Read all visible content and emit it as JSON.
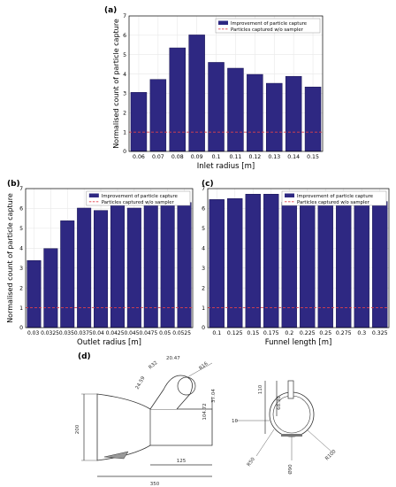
{
  "colors": {
    "bar": "#2e2882",
    "bar_edge": "#16124f",
    "ref_line": "#e0404a",
    "grid": "#e8e8e8"
  },
  "chart_data": [
    {
      "type": "bar",
      "panel": "(a)",
      "xlabel": "Inlet radius [m]",
      "ylabel": "Normalised count of particle capture",
      "categories": [
        "0.06",
        "0.07",
        "0.08",
        "0.09",
        "0.1",
        "0.11",
        "0.12",
        "0.13",
        "0.14",
        "0.15"
      ],
      "values": [
        3.05,
        3.72,
        5.35,
        6.02,
        4.6,
        4.3,
        3.98,
        3.52,
        3.88,
        3.33
      ],
      "reference_value": 1,
      "ylim": [
        0,
        7
      ],
      "yticks": [
        "0",
        "1",
        "2",
        "3",
        "4",
        "5",
        "6",
        "7"
      ],
      "grid": true,
      "legend_position": "top-right",
      "legend": [
        "Improvement of particle capture",
        "Particles captured w/o sampler"
      ]
    },
    {
      "type": "bar",
      "panel": "(b)",
      "xlabel": "Outlet radius [m]",
      "ylabel": "Normalised count of particle capture",
      "categories": [
        "0.03",
        "0.0325",
        "0.035",
        "0.0375",
        "0.04",
        "0.0425",
        "0.045",
        "0.0475",
        "0.05",
        "0.0525"
      ],
      "tick_text": "0.03 0.03250.0350.03750.04 0.04250.0450.0475 0.05 0.0525",
      "values": [
        3.38,
        3.98,
        5.38,
        6.02,
        5.9,
        6.42,
        6.02,
        6.52,
        6.75,
        6.3
      ],
      "reference_value": 1,
      "ylim": [
        0,
        7
      ],
      "yticks": [
        "0",
        "1",
        "2",
        "3",
        "4",
        "5",
        "6",
        "7"
      ],
      "grid": true,
      "legend_position": "top-right",
      "legend": [
        "Improvement of particle capture",
        "Particles captured w/o sampler"
      ]
    },
    {
      "type": "bar",
      "panel": "(c)",
      "xlabel": "Funnel length [m]",
      "ylabel": "",
      "categories": [
        "0.1",
        "0.125",
        "0.15",
        "0.175",
        "0.2",
        "0.225",
        "0.25",
        "0.275",
        "0.3",
        "0.325"
      ],
      "values": [
        6.45,
        6.5,
        6.72,
        6.72,
        6.32,
        6.85,
        6.42,
        6.42,
        6.18,
        6.35
      ],
      "reference_value": 1,
      "ylim": [
        0,
        7
      ],
      "yticks": [
        "0",
        "1",
        "2",
        "3",
        "4",
        "5",
        "6",
        "7"
      ],
      "grid": true,
      "legend_position": "top-right",
      "legend": [
        "Improvement of particle capture",
        "Particles captured w/o sampler"
      ]
    }
  ],
  "drawing": {
    "panel": "(d)",
    "dimensions": [
      "20.47",
      "R32",
      "R16",
      "24.59",
      "37.04",
      "104.72",
      "200",
      "125",
      "350",
      "110",
      "68.30",
      "10",
      "R50",
      "R100",
      "Ø90"
    ]
  }
}
